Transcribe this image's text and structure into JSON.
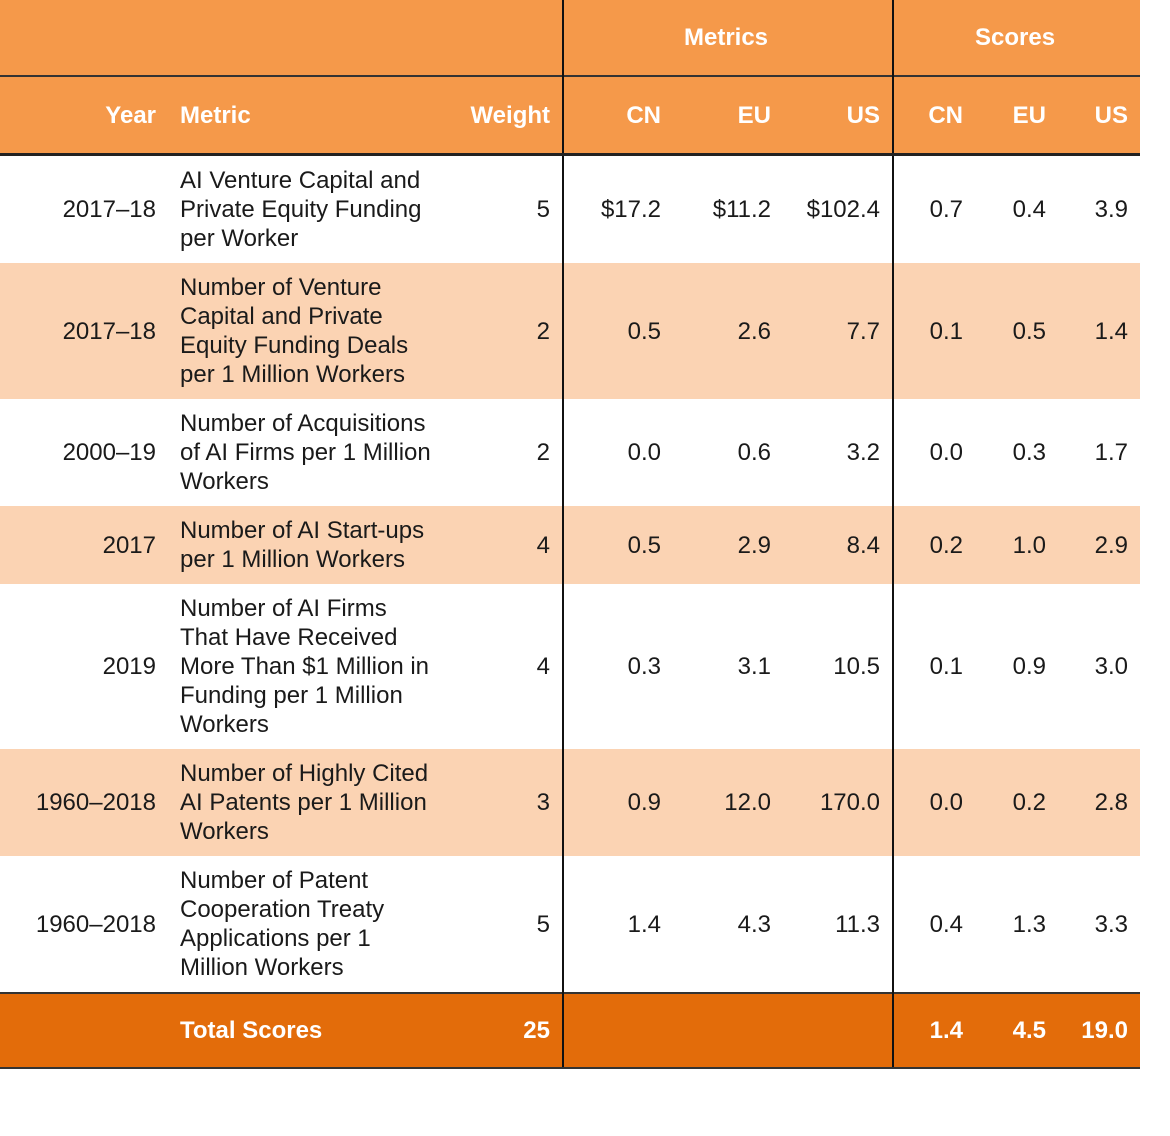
{
  "table": {
    "group_headers": [
      "Metrics",
      "Scores"
    ],
    "columns": [
      "Year",
      "Metric",
      "Weight",
      "CN",
      "EU",
      "US",
      "CN",
      "EU",
      "US"
    ],
    "rows": [
      [
        "2017–18",
        "AI Venture Capital and Private Equity Funding per Worker",
        "5",
        "$17.2",
        "$11.2",
        "$102.4",
        "0.7",
        "0.4",
        "3.9"
      ],
      [
        "2017–18",
        "Number of Venture Capital and Private Equity Funding Deals per 1 Million Workers",
        "2",
        "0.5",
        "2.6",
        "7.7",
        "0.1",
        "0.5",
        "1.4"
      ],
      [
        "2000–19",
        "Number of Acquisitions of AI Firms per 1 Million Workers",
        "2",
        "0.0",
        "0.6",
        "3.2",
        "0.0",
        "0.3",
        "1.7"
      ],
      [
        "2017",
        "Number of AI Start-ups per 1 Million Workers",
        "4",
        "0.5",
        "2.9",
        "8.4",
        "0.2",
        "1.0",
        "2.9"
      ],
      [
        "2019",
        "Number of AI Firms That Have Received More Than $1 Million in Funding per 1 Million Workers",
        "4",
        "0.3",
        "3.1",
        "10.5",
        "0.1",
        "0.9",
        "3.0"
      ],
      [
        "1960–2018",
        "Number of Highly Cited AI Patents per 1 Million Workers",
        "3",
        "0.9",
        "12.0",
        "170.0",
        "0.0",
        "0.2",
        "2.8"
      ],
      [
        "1960–2018",
        "Number of Patent Cooperation Treaty Applications per 1 Million Workers",
        "5",
        "1.4",
        "4.3",
        "11.3",
        "0.4",
        "1.3",
        "3.3"
      ]
    ],
    "total": {
      "label": "Total Scores",
      "weight": "25",
      "scores": [
        "1.4",
        "4.5",
        "19.0"
      ]
    }
  }
}
